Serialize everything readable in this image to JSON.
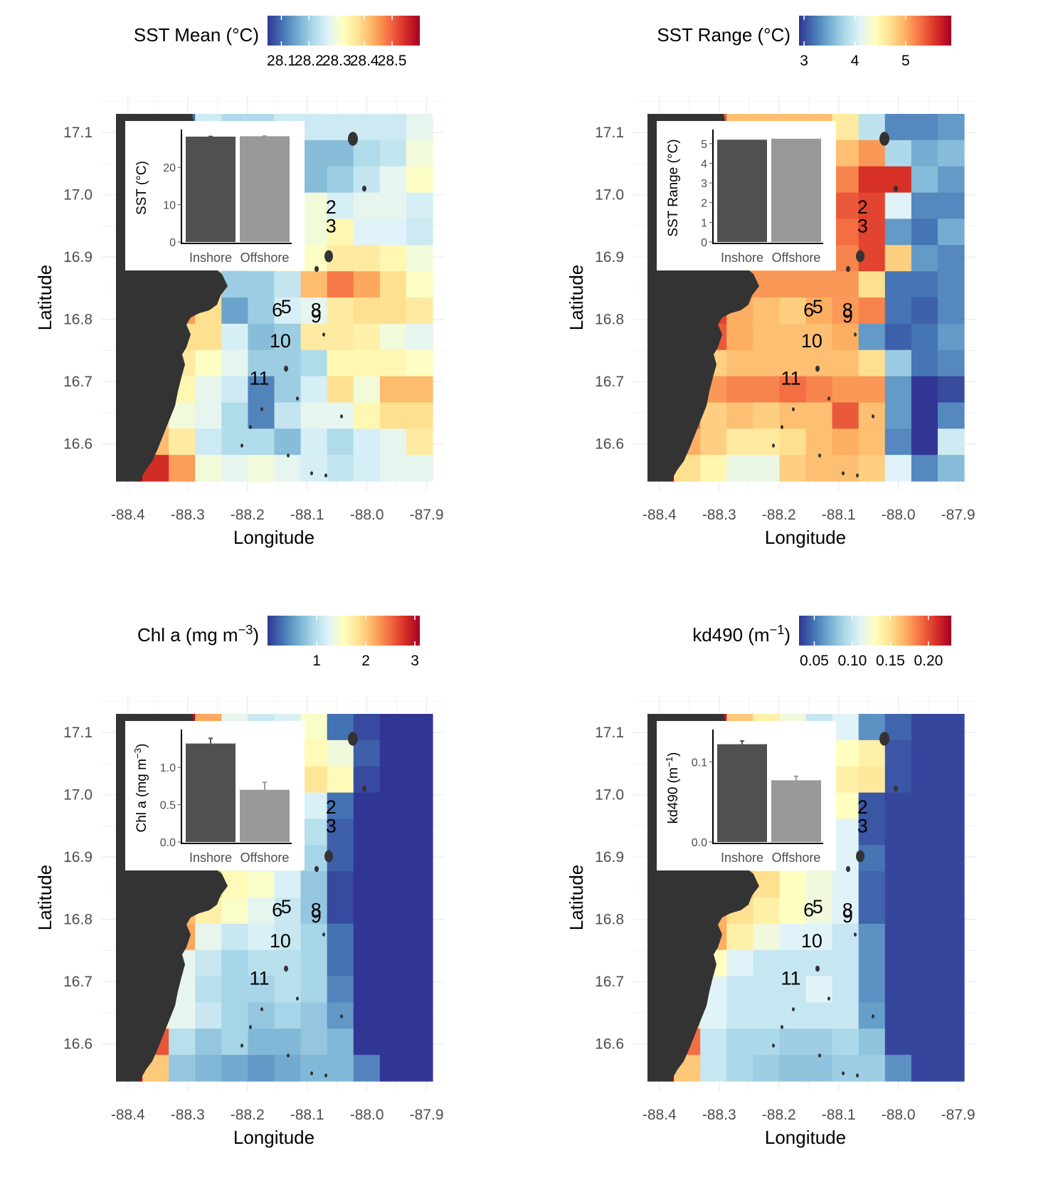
{
  "figure": {
    "x_axis_title": "Longitude",
    "y_axis_title": "Latitude"
  },
  "map": {
    "x_ticks": [
      "-88.4",
      "-88.3",
      "-88.2",
      "-88.1",
      "-88.0",
      "-87.9"
    ],
    "x_tick_values": [
      -88.4,
      -88.3,
      -88.2,
      -88.1,
      -88.0,
      -87.9
    ],
    "y_ticks": [
      "16.6",
      "16.7",
      "16.8",
      "16.9",
      "17.0",
      "17.1"
    ],
    "y_tick_values": [
      16.6,
      16.7,
      16.8,
      16.9,
      17.0,
      17.1
    ],
    "xlim": [
      -88.42,
      -87.89
    ],
    "ylim": [
      16.54,
      17.13
    ],
    "grid": true
  },
  "palette": [
    "#313695",
    "#4575b4",
    "#74add1",
    "#abd9e9",
    "#e0f3f8",
    "#ffffbf",
    "#fee090",
    "#fdae61",
    "#f46d43",
    "#d73027",
    "#a50026"
  ],
  "colors": {
    "land": "#333333",
    "inset_inshore": "#505050",
    "inset_offshore": "#999999",
    "grid": "#ebebeb"
  },
  "sites": [
    {
      "label": "2",
      "lon": -88.06,
      "lat": 16.98
    },
    {
      "label": "3",
      "lon": -88.06,
      "lat": 16.95
    },
    {
      "label": "6",
      "lon": -88.15,
      "lat": 16.815
    },
    {
      "label": "5",
      "lon": -88.135,
      "lat": 16.82
    },
    {
      "label": "8",
      "lon": -88.085,
      "lat": 16.815
    },
    {
      "label": "9",
      "lon": -88.085,
      "lat": 16.805
    },
    {
      "label": "10",
      "lon": -88.145,
      "lat": 16.765
    },
    {
      "label": "11",
      "lon": -88.18,
      "lat": 16.705
    }
  ],
  "panels": [
    {
      "id": "sst-mean",
      "legend": {
        "title": "SST Mean (°C)",
        "title_main": "SST Mean (°C)",
        "title_sup": "",
        "title_end": "",
        "range": [
          28.05,
          28.6
        ],
        "ticks": [
          "28.1",
          "28.2",
          "28.3",
          "28.4",
          "28.5"
        ],
        "tick_values": [
          28.1,
          28.2,
          28.3,
          28.4,
          28.5
        ]
      },
      "inset": {
        "ylabel": "SST (°C)",
        "ylabel_main": "SST (°C)",
        "ylabel_sup": "",
        "ylabel_end": "",
        "ylim": [
          0,
          29
        ],
        "y_ticks": [
          "0",
          "10",
          "20"
        ],
        "y_tick_values": [
          0,
          10,
          20
        ],
        "categories": [
          "Inshore",
          "Offshore"
        ],
        "values": [
          28.25,
          28.35
        ],
        "errors": [
          0.05,
          0.05
        ]
      }
    },
    {
      "id": "sst-range",
      "legend": {
        "title": "SST Range (°C)",
        "title_main": "SST Range (°C)",
        "title_sup": "",
        "title_end": "",
        "range": [
          2.9,
          5.9
        ],
        "ticks": [
          "3",
          "4",
          "5"
        ],
        "tick_values": [
          3,
          4,
          5
        ]
      },
      "inset": {
        "ylabel": "SST Range (°C)",
        "ylabel_main": "SST Range (°C)",
        "ylabel_sup": "",
        "ylabel_end": "",
        "ylim": [
          0,
          5.5
        ],
        "y_ticks": [
          "0",
          "1",
          "2",
          "3",
          "4",
          "5"
        ],
        "y_tick_values": [
          0,
          1,
          2,
          3,
          4,
          5
        ],
        "categories": [
          "Inshore",
          "Offshore"
        ],
        "values": [
          5.2,
          5.25
        ],
        "errors": [
          0,
          0
        ]
      }
    },
    {
      "id": "chl-a",
      "legend": {
        "title": "Chl a (mg m−3)",
        "title_main": "Chl a (mg m",
        "title_sup": "−3",
        "title_end": ")",
        "range": [
          0.0,
          3.1
        ],
        "ticks": [
          "1",
          "2",
          "3"
        ],
        "tick_values": [
          1,
          2,
          3
        ]
      },
      "inset": {
        "ylabel": "Chl a (mg m−3)",
        "ylabel_main": "Chl a (mg m",
        "ylabel_sup": "−3",
        "ylabel_end": ")",
        "ylim": [
          0,
          1.45
        ],
        "y_ticks": [
          "0.0",
          "0.5",
          "1.0"
        ],
        "y_tick_values": [
          0,
          0.5,
          1.0
        ],
        "categories": [
          "Inshore",
          "Offshore"
        ],
        "values": [
          1.32,
          0.7
        ],
        "errors": [
          0.07,
          0.1
        ]
      }
    },
    {
      "id": "kd490",
      "legend": {
        "title": "kd490 (m−1)",
        "title_main": "kd490 (m",
        "title_sup": "−1",
        "title_end": ")",
        "range": [
          0.03,
          0.23
        ],
        "ticks": [
          "0.05",
          "0.10",
          "0.15",
          "0.20"
        ],
        "tick_values": [
          0.05,
          0.1,
          0.15,
          0.2
        ]
      },
      "inset": {
        "ylabel": "kd490 (m−1)",
        "ylabel_main": "kd490 (m",
        "ylabel_sup": "−1",
        "ylabel_end": ")",
        "ylim": [
          0,
          0.135
        ],
        "y_ticks": [
          "0.0",
          "0.1"
        ],
        "y_tick_values": [
          0,
          0.1
        ],
        "categories": [
          "Inshore",
          "Offshore"
        ],
        "values": [
          0.122,
          0.077
        ],
        "errors": [
          0.004,
          0.005
        ]
      }
    }
  ],
  "chart_data": [
    {
      "type": "heatmap",
      "title": "SST Mean (°C)",
      "xlabel": "Longitude",
      "ylabel": "Latitude",
      "xlim": [
        -88.42,
        -87.89
      ],
      "ylim": [
        16.54,
        17.13
      ],
      "lon_start": -88.42,
      "lat_top": 17.13,
      "cell_size": 0.042,
      "color_range": [
        28.05,
        28.6
      ],
      "grid": [
        [
          28.6,
          28.6,
          28.1,
          28.25,
          28.22,
          28.22,
          28.25,
          28.25,
          28.25,
          28.25,
          28.25,
          28.28
        ],
        [
          28.6,
          28.6,
          28.1,
          28.25,
          28.2,
          28.2,
          28.15,
          28.18,
          28.18,
          28.22,
          28.24,
          28.3
        ],
        [
          28.6,
          28.6,
          28.1,
          28.2,
          28.15,
          28.15,
          28.15,
          28.18,
          28.2,
          28.24,
          28.28,
          28.32
        ],
        [
          28.6,
          28.6,
          28.1,
          28.25,
          28.25,
          28.25,
          28.28,
          28.3,
          28.26,
          28.28,
          28.28,
          28.26
        ],
        [
          28.6,
          28.6,
          28.25,
          28.25,
          28.25,
          28.25,
          28.28,
          28.3,
          28.34,
          28.27,
          28.27,
          28.25
        ],
        [
          28.6,
          28.6,
          28.4,
          28.3,
          28.25,
          28.28,
          28.3,
          28.32,
          28.36,
          28.36,
          28.34,
          28.3
        ],
        [
          28.6,
          28.6,
          28.6,
          28.4,
          28.2,
          28.2,
          28.24,
          28.42,
          28.48,
          28.44,
          28.38,
          28.32
        ],
        [
          28.6,
          28.6,
          28.45,
          28.38,
          28.15,
          28.2,
          28.26,
          28.28,
          28.36,
          28.38,
          28.38,
          28.36
        ],
        [
          28.6,
          28.4,
          28.38,
          28.38,
          28.26,
          28.18,
          28.2,
          28.36,
          28.36,
          28.35,
          28.3,
          28.28
        ],
        [
          28.6,
          28.2,
          28.36,
          28.32,
          28.28,
          28.2,
          28.2,
          28.22,
          28.34,
          28.34,
          28.34,
          28.32
        ],
        [
          28.6,
          28.3,
          28.34,
          28.28,
          28.25,
          28.12,
          28.2,
          28.26,
          28.38,
          28.3,
          28.42,
          28.42
        ],
        [
          28.6,
          28.4,
          28.3,
          28.28,
          28.22,
          28.12,
          28.24,
          28.28,
          28.28,
          28.34,
          28.38,
          28.38
        ],
        [
          28.6,
          28.42,
          28.36,
          28.25,
          28.22,
          28.22,
          28.18,
          28.26,
          28.22,
          28.26,
          28.28,
          28.36
        ],
        [
          28.6,
          28.55,
          28.45,
          28.3,
          28.28,
          28.3,
          28.28,
          28.26,
          28.24,
          28.26,
          28.28,
          28.28
        ]
      ]
    },
    {
      "type": "heatmap",
      "title": "SST Range (°C)",
      "xlabel": "Longitude",
      "ylabel": "Latitude",
      "xlim": [
        -88.42,
        -87.89
      ],
      "ylim": [
        16.54,
        17.13
      ],
      "lon_start": -88.42,
      "lat_top": 17.13,
      "cell_size": 0.042,
      "color_range": [
        2.9,
        5.9
      ],
      "grid": [
        [
          5.9,
          5.9,
          5.4,
          4.9,
          4.9,
          4.9,
          4.9,
          4.6,
          3.9,
          3.3,
          3.3,
          3.4
        ],
        [
          5.9,
          5.9,
          5.1,
          5.0,
          5.0,
          5.0,
          5.0,
          4.9,
          5.1,
          3.8,
          3.5,
          3.6
        ],
        [
          5.9,
          5.9,
          5.1,
          5.0,
          5.0,
          5.0,
          5.0,
          5.2,
          5.6,
          5.6,
          3.6,
          3.4
        ],
        [
          5.9,
          5.9,
          5.1,
          5.0,
          5.0,
          5.0,
          5.0,
          5.4,
          5.5,
          4.1,
          3.3,
          3.3
        ],
        [
          5.9,
          5.9,
          5.1,
          5.0,
          5.0,
          5.0,
          5.0,
          5.3,
          5.5,
          3.4,
          3.2,
          3.5
        ],
        [
          5.9,
          5.9,
          5.1,
          5.0,
          5.0,
          5.0,
          5.0,
          5.2,
          5.5,
          4.8,
          3.4,
          3.3
        ],
        [
          5.9,
          5.9,
          5.2,
          5.1,
          5.1,
          5.1,
          5.1,
          5.1,
          4.7,
          3.2,
          3.2,
          3.3
        ],
        [
          5.9,
          5.9,
          5.5,
          5.0,
          4.9,
          4.8,
          5.0,
          5.1,
          5.2,
          3.2,
          3.1,
          3.3
        ],
        [
          5.9,
          5.9,
          5.4,
          5.0,
          4.9,
          4.9,
          4.9,
          5.0,
          3.4,
          3.1,
          3.2,
          3.4
        ],
        [
          5.9,
          5.5,
          4.8,
          4.9,
          4.9,
          4.9,
          4.9,
          4.9,
          4.7,
          3.7,
          3.2,
          3.3
        ],
        [
          5.9,
          5.2,
          5.1,
          5.2,
          5.2,
          5.3,
          5.2,
          5.1,
          5.1,
          3.4,
          2.9,
          3.0
        ],
        [
          5.9,
          5.3,
          4.8,
          4.9,
          4.8,
          4.9,
          4.9,
          5.4,
          4.9,
          3.4,
          2.9,
          3.3
        ],
        [
          5.9,
          5.0,
          4.8,
          4.6,
          4.6,
          4.7,
          4.9,
          5.0,
          4.9,
          3.3,
          2.9,
          4.0
        ],
        [
          5.9,
          4.7,
          4.5,
          4.2,
          4.2,
          4.8,
          4.9,
          4.9,
          4.8,
          4.1,
          3.3,
          3.6
        ]
      ]
    },
    {
      "type": "heatmap",
      "title": "Chl a (mg m−3)",
      "xlabel": "Longitude",
      "ylabel": "Latitude",
      "xlim": [
        -88.42,
        -87.89
      ],
      "ylim": [
        16.54,
        17.13
      ],
      "lon_start": -88.42,
      "lat_top": 17.13,
      "cell_size": 0.042,
      "color_range": [
        0.0,
        3.1
      ],
      "grid": [
        [
          3.1,
          3.1,
          3.0,
          2.2,
          1.3,
          1.1,
          1.2,
          1.5,
          0.3,
          0.1,
          0.0,
          0.0
        ],
        [
          3.1,
          3.1,
          2.7,
          1.7,
          1.3,
          1.2,
          1.1,
          1.6,
          1.4,
          0.2,
          0.0,
          0.0
        ],
        [
          3.1,
          3.1,
          2.5,
          1.9,
          1.3,
          1.2,
          1.0,
          1.8,
          1.6,
          0.1,
          0.0,
          0.0
        ],
        [
          3.1,
          3.1,
          2.3,
          1.5,
          1.3,
          1.2,
          1.2,
          1.2,
          0.3,
          0.0,
          0.0,
          0.0
        ],
        [
          3.1,
          3.1,
          2.1,
          1.4,
          1.3,
          1.2,
          1.2,
          1.0,
          0.2,
          0.0,
          0.0,
          0.0
        ],
        [
          3.1,
          3.1,
          2.2,
          1.6,
          1.5,
          1.3,
          1.3,
          0.9,
          0.2,
          0.0,
          0.0,
          0.0
        ],
        [
          3.1,
          3.1,
          2.8,
          2.2,
          1.6,
          1.5,
          1.2,
          0.8,
          0.1,
          0.0,
          0.0,
          0.0
        ],
        [
          3.1,
          3.1,
          2.1,
          1.7,
          1.5,
          1.3,
          1.1,
          0.8,
          0.1,
          0.0,
          0.0,
          0.0
        ],
        [
          3.1,
          3.1,
          2.2,
          1.3,
          1.1,
          1.2,
          1.1,
          0.9,
          0.3,
          0.0,
          0.0,
          0.0
        ],
        [
          3.1,
          1.6,
          1.3,
          1.1,
          0.9,
          1.0,
          1.0,
          0.9,
          0.3,
          0.0,
          0.0,
          0.0
        ],
        [
          3.1,
          1.6,
          1.3,
          1.0,
          0.9,
          0.9,
          1.0,
          0.9,
          0.4,
          0.0,
          0.0,
          0.0
        ],
        [
          3.1,
          1.6,
          1.3,
          1.1,
          0.9,
          0.8,
          0.9,
          0.8,
          0.5,
          0.0,
          0.0,
          0.0
        ],
        [
          3.1,
          2.6,
          1.0,
          0.8,
          0.9,
          0.7,
          0.7,
          0.8,
          0.7,
          0.0,
          0.0,
          0.0
        ],
        [
          3.1,
          2.0,
          0.8,
          0.7,
          0.6,
          0.5,
          0.6,
          0.7,
          0.7,
          0.4,
          0.0,
          0.0
        ]
      ]
    },
    {
      "type": "heatmap",
      "title": "kd490 (m−1)",
      "xlabel": "Longitude",
      "ylabel": "Latitude",
      "xlim": [
        -88.42,
        -87.89
      ],
      "ylim": [
        16.54,
        17.13
      ],
      "lon_start": -88.42,
      "lat_top": 17.13,
      "cell_size": 0.042,
      "color_range": [
        0.03,
        0.23
      ],
      "grid": [
        [
          0.23,
          0.23,
          0.22,
          0.16,
          0.14,
          0.12,
          0.1,
          0.11,
          0.06,
          0.045,
          0.035,
          0.035
        ],
        [
          0.23,
          0.23,
          0.2,
          0.15,
          0.13,
          0.12,
          0.11,
          0.13,
          0.14,
          0.04,
          0.035,
          0.035
        ],
        [
          0.23,
          0.23,
          0.18,
          0.14,
          0.13,
          0.12,
          0.11,
          0.14,
          0.145,
          0.04,
          0.035,
          0.035
        ],
        [
          0.23,
          0.23,
          0.18,
          0.14,
          0.13,
          0.12,
          0.12,
          0.13,
          0.04,
          0.035,
          0.035,
          0.035
        ],
        [
          0.23,
          0.23,
          0.16,
          0.13,
          0.12,
          0.12,
          0.12,
          0.11,
          0.04,
          0.035,
          0.035,
          0.035
        ],
        [
          0.23,
          0.23,
          0.17,
          0.14,
          0.13,
          0.12,
          0.12,
          0.11,
          0.05,
          0.035,
          0.035,
          0.035
        ],
        [
          0.23,
          0.23,
          0.2,
          0.17,
          0.15,
          0.13,
          0.12,
          0.11,
          0.045,
          0.035,
          0.035,
          0.035
        ],
        [
          0.23,
          0.23,
          0.17,
          0.15,
          0.14,
          0.13,
          0.12,
          0.11,
          0.045,
          0.035,
          0.035,
          0.035
        ],
        [
          0.23,
          0.23,
          0.17,
          0.14,
          0.12,
          0.11,
          0.11,
          0.1,
          0.06,
          0.035,
          0.035,
          0.035
        ],
        [
          0.23,
          0.16,
          0.13,
          0.11,
          0.1,
          0.1,
          0.1,
          0.1,
          0.06,
          0.035,
          0.035,
          0.035
        ],
        [
          0.23,
          0.16,
          0.11,
          0.1,
          0.1,
          0.1,
          0.11,
          0.1,
          0.06,
          0.035,
          0.035,
          0.035
        ],
        [
          0.23,
          0.15,
          0.11,
          0.1,
          0.1,
          0.1,
          0.1,
          0.1,
          0.065,
          0.035,
          0.035,
          0.035
        ],
        [
          0.23,
          0.19,
          0.1,
          0.09,
          0.09,
          0.085,
          0.085,
          0.09,
          0.08,
          0.035,
          0.035,
          0.035
        ],
        [
          0.23,
          0.16,
          0.1,
          0.09,
          0.085,
          0.08,
          0.08,
          0.085,
          0.085,
          0.06,
          0.035,
          0.035
        ]
      ]
    }
  ]
}
